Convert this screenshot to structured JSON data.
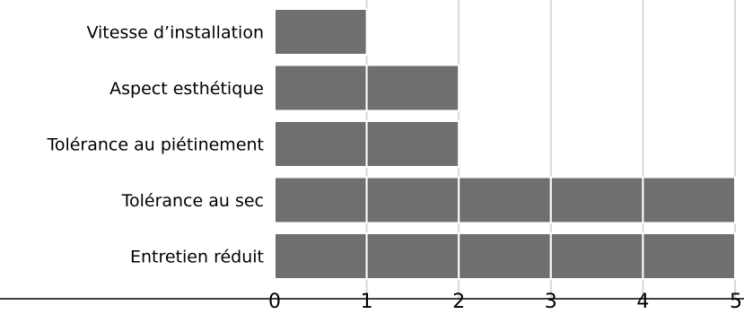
{
  "chart_data": {
    "type": "bar",
    "orientation": "horizontal",
    "categories": [
      "Vitesse d’installation",
      "Aspect esthétique",
      "Tolérance au piétinement",
      "Tolérance au  sec",
      "Entretien réduit"
    ],
    "values": [
      1,
      2,
      2,
      5,
      5
    ],
    "title": "",
    "xlabel": "",
    "ylabel": "",
    "xlim": [
      0,
      5
    ],
    "xticks": [
      "0",
      "1",
      "2",
      "3",
      "4",
      "5"
    ],
    "grid": "vertical",
    "legend": "none",
    "colors": {
      "bar": "#6f6f6f",
      "bar_edge": "#ffffff",
      "grid": "#d8d8d8",
      "axis": "#000000"
    }
  }
}
